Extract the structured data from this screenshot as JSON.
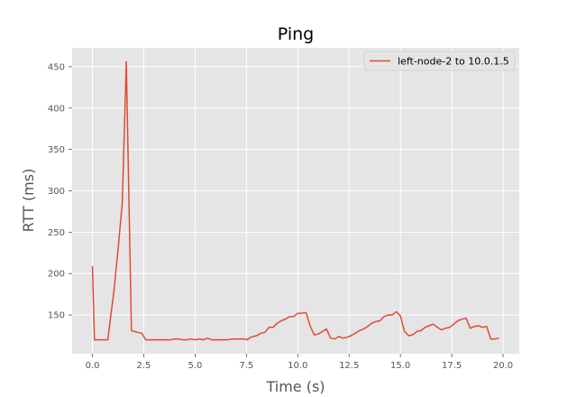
{
  "chart_data": {
    "type": "line",
    "title": "Ping",
    "xlabel": "Time (s)",
    "ylabel": "RTT (ms)",
    "xlim": [
      -0.99,
      20.79
    ],
    "ylim": [
      103.2,
      472.8
    ],
    "xticks": [
      0.0,
      2.5,
      5.0,
      7.5,
      10.0,
      12.5,
      15.0,
      17.5,
      20.0
    ],
    "xtick_labels": [
      "0.0",
      "2.5",
      "5.0",
      "7.5",
      "10.0",
      "12.5",
      "15.0",
      "17.5",
      "20.0"
    ],
    "yticks": [
      150,
      200,
      250,
      300,
      350,
      400,
      450
    ],
    "ytick_labels": [
      "150",
      "200",
      "250",
      "300",
      "350",
      "400",
      "450"
    ],
    "grid": true,
    "legend_position": "top-right",
    "colors": {
      "line": "#e24a33",
      "plot_bg": "#e5e5e5",
      "grid": "#ffffff"
    },
    "series": [
      {
        "name": "left-node-2 to 10.0.1.5",
        "x": [
          0.0,
          0.1,
          0.4,
          0.75,
          0.9,
          1.05,
          1.25,
          1.45,
          1.65,
          1.9,
          2.2,
          2.4,
          2.6,
          2.8,
          3.0,
          3.2,
          3.4,
          3.6,
          3.8,
          4.0,
          4.2,
          4.4,
          4.6,
          4.8,
          5.0,
          5.2,
          5.4,
          5.6,
          5.8,
          6.0,
          6.2,
          6.4,
          6.6,
          6.8,
          7.0,
          7.2,
          7.4,
          7.55,
          7.7,
          8.0,
          8.2,
          8.4,
          8.6,
          8.8,
          9.0,
          9.2,
          9.4,
          9.6,
          9.8,
          10.0,
          10.2,
          10.4,
          10.6,
          10.8,
          11.0,
          11.2,
          11.4,
          11.6,
          11.8,
          12.0,
          12.2,
          12.4,
          12.6,
          12.8,
          13.0,
          13.2,
          13.4,
          13.6,
          13.8,
          14.0,
          14.2,
          14.4,
          14.6,
          14.8,
          15.0,
          15.2,
          15.4,
          15.6,
          15.8,
          16.0,
          16.2,
          16.4,
          16.6,
          16.8,
          17.0,
          17.2,
          17.4,
          17.6,
          17.8,
          18.0,
          18.2,
          18.4,
          18.6,
          18.8,
          19.0,
          19.2,
          19.4,
          19.6,
          19.8
        ],
        "y": [
          209,
          120,
          120,
          120,
          150,
          180,
          230,
          285,
          456,
          131,
          129,
          128,
          120,
          120,
          120,
          120,
          120,
          120,
          120,
          121,
          121,
          120,
          120,
          121,
          120,
          121,
          120,
          122,
          120,
          120,
          120,
          120,
          120,
          121,
          121,
          121,
          121,
          120,
          123,
          125,
          128,
          129,
          135,
          135,
          140,
          143,
          145,
          148,
          148,
          152,
          152,
          153,
          137,
          126,
          127,
          130,
          133,
          122,
          121,
          124,
          122,
          123,
          125,
          128,
          131,
          133,
          136,
          140,
          142,
          143,
          148,
          150,
          150,
          154,
          149,
          130,
          125,
          126,
          130,
          131,
          135,
          137,
          139,
          135,
          132,
          134,
          135,
          139,
          143,
          145,
          146,
          134,
          136,
          137,
          135,
          136,
          121,
          121,
          122
        ]
      }
    ]
  }
}
